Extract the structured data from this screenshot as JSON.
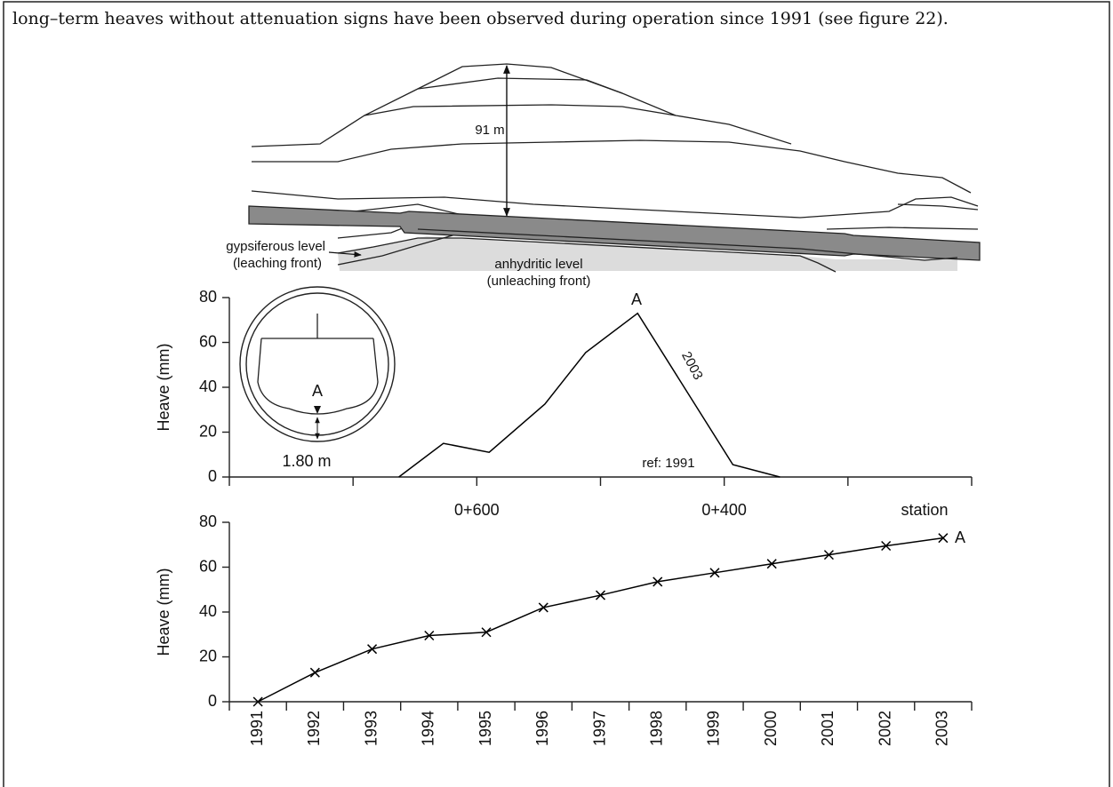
{
  "text": "long–term heaves without attenuation signs have been observed during operation since 1991 (see figure 22).",
  "diagram": {
    "height_label": "91 m",
    "gypsiferous_label": "gypsiferous level",
    "gypsiferous_note": "(leaching front)",
    "anhydritic_label": "anhydritic level",
    "anhydritic_note": "(unleaching front)"
  },
  "chart_data": [
    {
      "type": "line",
      "y_label": "Heave (mm)",
      "x_label": "station",
      "x": [
        663,
        627,
        590,
        545,
        512,
        470,
        393,
        355
      ],
      "series": [
        {
          "name": "2003",
          "color": "#000000",
          "values": [
            0,
            15,
            11,
            32.5,
            55.5,
            73,
            5.5,
            0
          ]
        }
      ],
      "xlim": [
        800,
        200
      ],
      "xticks": [
        {
          "value": 600,
          "label": "0+600"
        },
        {
          "value": 400,
          "label": "0+400"
        }
      ],
      "xminorticks": [
        800,
        700,
        500,
        300,
        200
      ],
      "ylim": [
        0,
        80
      ],
      "yticks": [
        0,
        20,
        40,
        60,
        80
      ],
      "peak_label": "A",
      "ref_note": "ref: 1991",
      "inset": {
        "point_label": "A",
        "depth_label": "1.80 m"
      }
    },
    {
      "type": "line",
      "y_label": "Heave (mm)",
      "categories": [
        "1991",
        "1992",
        "1993",
        "1994",
        "1995",
        "1996",
        "1997",
        "1998",
        "1999",
        "2000",
        "2001",
        "2002",
        "2003"
      ],
      "series": [
        {
          "color": "#000000",
          "values": [
            0,
            13,
            23.5,
            29.5,
            31,
            42,
            47.5,
            53.5,
            57.5,
            61.5,
            65.5,
            69.5,
            73
          ]
        }
      ],
      "ylim": [
        0,
        80
      ],
      "yticks": [
        0,
        20,
        40,
        60,
        80
      ],
      "end_label": "A"
    }
  ]
}
